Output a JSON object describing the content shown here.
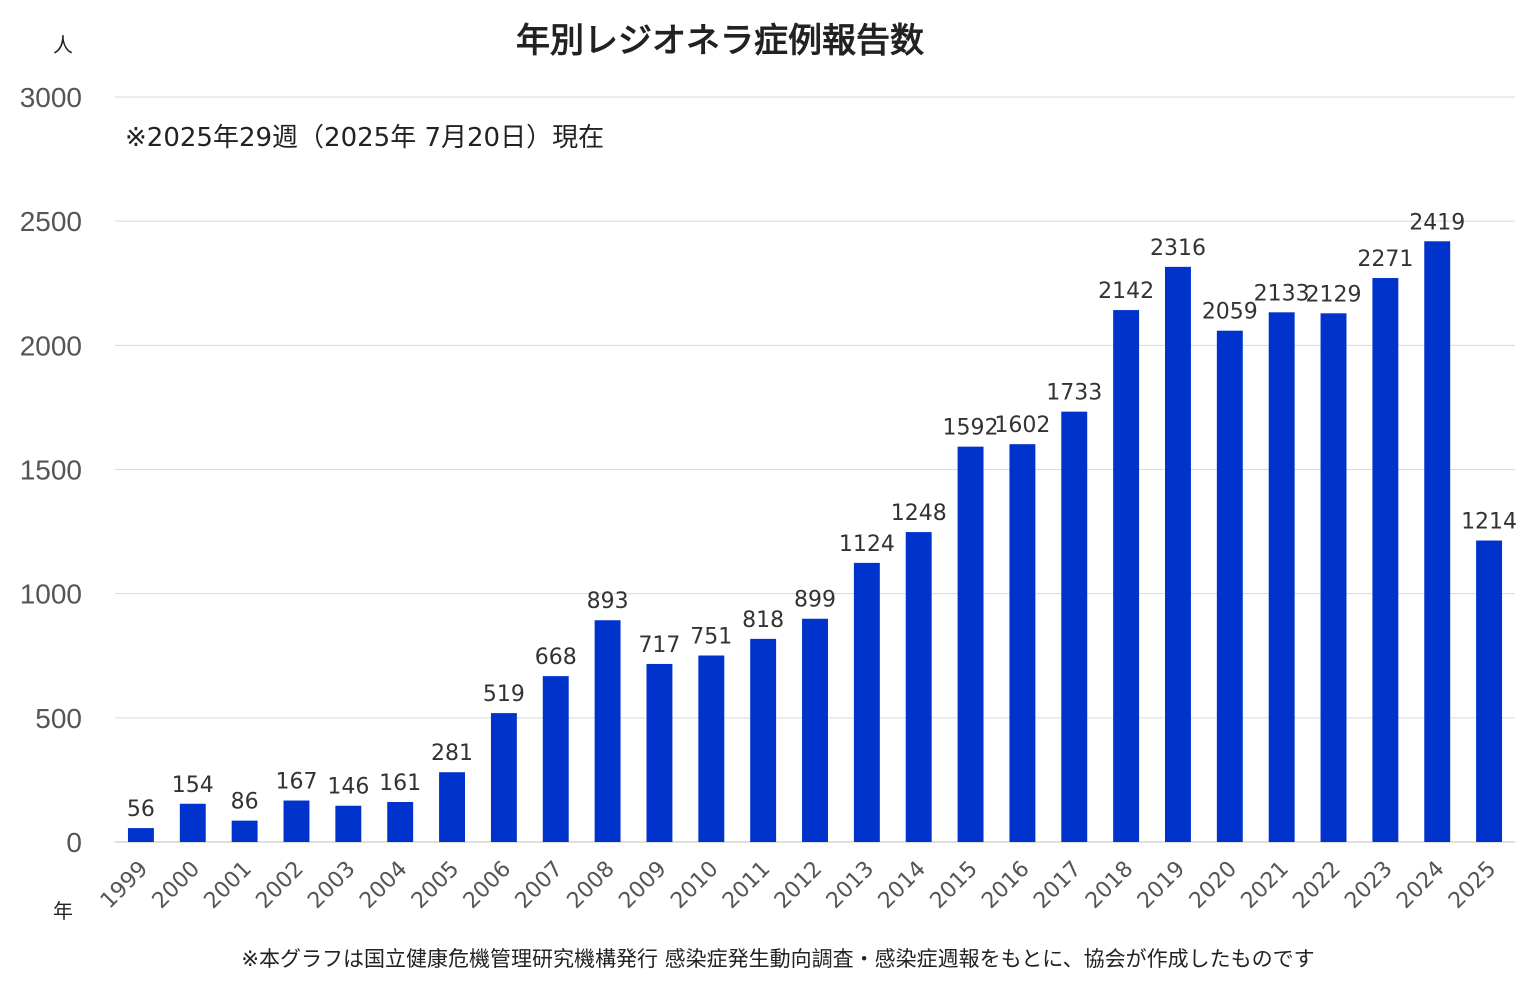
{
  "chart_data": {
    "type": "bar",
    "title": "年別レジオネラ症例報告数",
    "subtitle": "※2025年29週（2025年 7月20日）現在",
    "ylabel": "人",
    "xlabel": "年",
    "ylim": [
      0,
      3000
    ],
    "yticks": [
      0,
      500,
      1000,
      1500,
      2000,
      2500,
      3000
    ],
    "grid": true,
    "bar_color": "#0033cc",
    "categories": [
      "1999",
      "2000",
      "2001",
      "2002",
      "2003",
      "2004",
      "2005",
      "2006",
      "2007",
      "2008",
      "2009",
      "2010",
      "2011",
      "2012",
      "2013",
      "2014",
      "2015",
      "2016",
      "2017",
      "2018",
      "2019",
      "2020",
      "2021",
      "2022",
      "2023",
      "2024",
      "2025"
    ],
    "values": [
      56,
      154,
      86,
      167,
      146,
      161,
      281,
      519,
      668,
      893,
      717,
      751,
      818,
      899,
      1124,
      1248,
      1592,
      1602,
      1733,
      2142,
      2316,
      2059,
      2133,
      2129,
      2271,
      2419,
      1214
    ],
    "source_note": "※本グラフは国立健康危機管理研究機構発行 感染症発生動向調査・感染症週報をもとに、協会が作成したものです"
  }
}
